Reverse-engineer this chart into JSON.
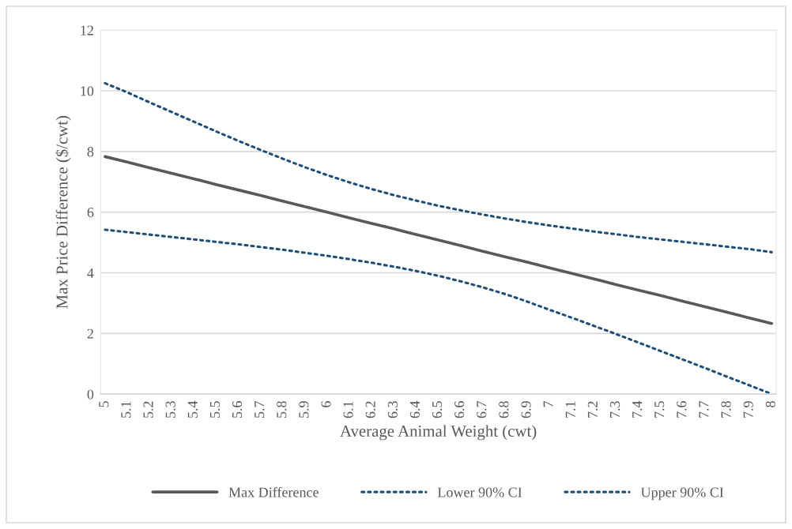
{
  "chart_data": {
    "type": "line",
    "xlabel": "Average Animal Weight (cwt)",
    "ylabel": "Max Price Difference ($/cwt)",
    "categories": [
      "5",
      "5.1",
      "5.2",
      "5.3",
      "5.4",
      "5.5",
      "5.6",
      "5.7",
      "5.8",
      "5.9",
      "6",
      "6.1",
      "6.2",
      "6.3",
      "6.4",
      "6.5",
      "6.6",
      "6.7",
      "6.8",
      "6.9",
      "7",
      "7.1",
      "7.2",
      "7.3",
      "7.4",
      "7.5",
      "7.6",
      "7.7",
      "7.8",
      "7.9",
      "8"
    ],
    "series": [
      {
        "name": "Max Difference",
        "color": "#595959",
        "line_style": "solid",
        "values": [
          7.83,
          7.65,
          7.46,
          7.28,
          7.1,
          6.91,
          6.73,
          6.55,
          6.36,
          6.18,
          6.0,
          5.81,
          5.63,
          5.45,
          5.26,
          5.08,
          4.9,
          4.71,
          4.53,
          4.35,
          4.16,
          3.98,
          3.8,
          3.61,
          3.43,
          3.25,
          3.06,
          2.88,
          2.7,
          2.51,
          2.33
        ]
      },
      {
        "name": "Lower 90% CI",
        "color": "#1f4e79",
        "line_style": "dotted",
        "values": [
          5.42,
          5.34,
          5.26,
          5.18,
          5.1,
          5.02,
          4.94,
          4.85,
          4.76,
          4.66,
          4.56,
          4.45,
          4.33,
          4.2,
          4.06,
          3.9,
          3.72,
          3.52,
          3.3,
          3.05,
          2.78,
          2.52,
          2.25,
          1.98,
          1.7,
          1.42,
          1.14,
          0.86,
          0.57,
          0.29,
          0.0
        ]
      },
      {
        "name": "Upper 90% CI",
        "color": "#1f4e79",
        "line_style": "dotted",
        "values": [
          10.25,
          9.95,
          9.62,
          9.3,
          8.98,
          8.66,
          8.35,
          8.05,
          7.76,
          7.48,
          7.22,
          6.98,
          6.76,
          6.56,
          6.38,
          6.21,
          6.06,
          5.92,
          5.79,
          5.67,
          5.56,
          5.46,
          5.36,
          5.27,
          5.18,
          5.1,
          5.02,
          4.94,
          4.86,
          4.78,
          4.68
        ]
      }
    ],
    "ylim": [
      0,
      12
    ],
    "yticks": [
      0,
      2,
      4,
      6,
      8,
      10,
      12
    ],
    "grid": "y",
    "legend": "bottom",
    "marker": "none"
  }
}
